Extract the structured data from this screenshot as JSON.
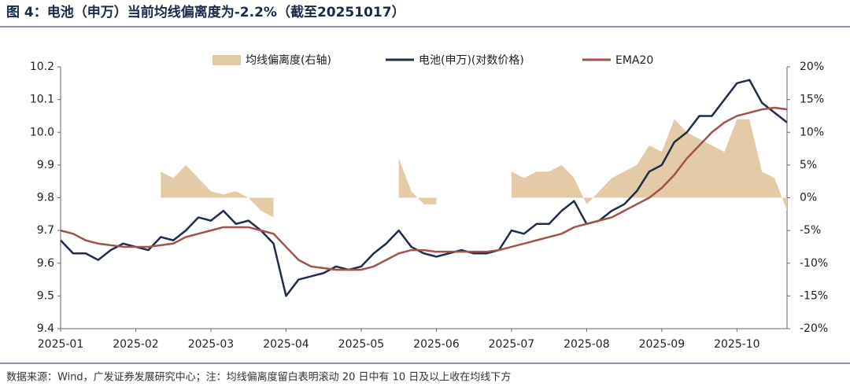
{
  "chart_data": {
    "type": "line",
    "title": "图 4：电池（申万）当前均线偏离度为-2.2%（截至20251017）",
    "footnote": "数据来源：Wind，广发证券发展研究中心；注：均线偏离度留白表明滚动 20 日中有 10 日及以上收在均线下方",
    "categories": [
      "2025-01",
      null,
      null,
      null,
      null,
      null,
      "2025-02",
      null,
      null,
      null,
      null,
      null,
      "2025-03",
      null,
      null,
      null,
      null,
      null,
      "2025-04",
      null,
      null,
      null,
      null,
      null,
      "2025-05",
      null,
      null,
      null,
      null,
      null,
      "2025-06",
      null,
      null,
      null,
      null,
      null,
      "2025-07",
      null,
      null,
      null,
      null,
      null,
      "2025-08",
      null,
      null,
      null,
      null,
      null,
      "2025-09",
      null,
      null,
      null,
      null,
      null,
      "2025-10",
      null,
      null,
      null,
      null
    ],
    "series": [
      {
        "name": "均线偏离度(右轴)",
        "kind": "area",
        "axis": "y2",
        "color": "#e3cba8",
        "values": [
          null,
          null,
          null,
          null,
          null,
          null,
          null,
          null,
          4,
          3,
          5,
          3,
          1,
          0.5,
          1,
          0,
          -2,
          -3,
          null,
          null,
          null,
          null,
          null,
          null,
          null,
          null,
          null,
          6,
          1,
          -1,
          -1,
          null,
          null,
          null,
          null,
          null,
          4,
          3,
          4,
          4,
          5,
          3,
          -1,
          1,
          3,
          4,
          5,
          8,
          7,
          12,
          10,
          9,
          8,
          7,
          12,
          12,
          4,
          3,
          -2
        ]
      },
      {
        "name": "电池(申万)(对数价格)",
        "kind": "line",
        "color": "#1f2d4a",
        "values": [
          9.67,
          9.63,
          9.63,
          9.61,
          9.64,
          9.66,
          9.65,
          9.64,
          9.68,
          9.67,
          9.7,
          9.74,
          9.73,
          9.76,
          9.72,
          9.73,
          9.7,
          9.66,
          9.5,
          9.55,
          9.56,
          9.57,
          9.59,
          9.58,
          9.59,
          9.63,
          9.66,
          9.7,
          9.65,
          9.63,
          9.62,
          9.63,
          9.64,
          9.63,
          9.63,
          9.64,
          9.7,
          9.69,
          9.72,
          9.72,
          9.76,
          9.79,
          9.72,
          9.73,
          9.76,
          9.78,
          9.82,
          9.88,
          9.9,
          9.97,
          10.0,
          10.05,
          10.05,
          10.1,
          10.15,
          10.16,
          10.09,
          10.06,
          10.03
        ]
      },
      {
        "name": "EMA20",
        "kind": "line",
        "color": "#a0524c",
        "values": [
          9.7,
          9.69,
          9.67,
          9.66,
          9.655,
          9.65,
          9.65,
          9.65,
          9.655,
          9.66,
          9.68,
          9.69,
          9.7,
          9.71,
          9.71,
          9.71,
          9.7,
          9.69,
          9.65,
          9.61,
          9.59,
          9.585,
          9.58,
          9.58,
          9.58,
          9.59,
          9.61,
          9.63,
          9.64,
          9.64,
          9.635,
          9.635,
          9.635,
          9.635,
          9.635,
          9.64,
          9.65,
          9.66,
          9.67,
          9.68,
          9.69,
          9.71,
          9.72,
          9.73,
          9.74,
          9.76,
          9.78,
          9.8,
          9.83,
          9.87,
          9.92,
          9.96,
          10.0,
          10.03,
          10.05,
          10.06,
          10.07,
          10.075,
          10.07
        ]
      }
    ],
    "ylim": [
      9.4,
      10.2
    ],
    "yticks": [
      9.4,
      9.5,
      9.6,
      9.7,
      9.8,
      9.9,
      {
        "value": 10,
        "label": "10.0"
      },
      10.1,
      10.2
    ],
    "y2lim": [
      -20,
      20
    ],
    "y2ticks": [
      {
        "value": -20,
        "label": "-20%"
      },
      {
        "value": -15,
        "label": "-15%"
      },
      {
        "value": -10,
        "label": "-10%"
      },
      {
        "value": -5,
        "label": "-5%"
      },
      {
        "value": 0,
        "label": "0%"
      },
      {
        "value": 5,
        "label": "5%"
      },
      {
        "value": 10,
        "label": "10%"
      },
      {
        "value": 15,
        "label": "15%"
      },
      {
        "value": 20,
        "label": "20%"
      }
    ],
    "legend": "top"
  }
}
